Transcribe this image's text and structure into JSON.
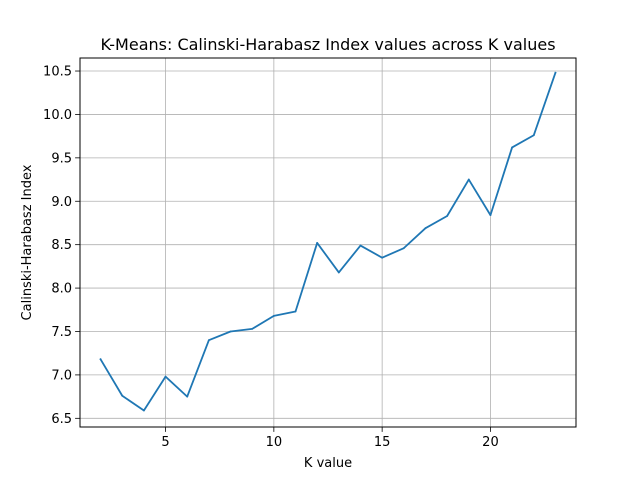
{
  "chart_data": {
    "type": "line",
    "title": "K-Means: Calinski-Harabasz Index values across K values",
    "xlabel": "K value",
    "ylabel": "Calinski-Harabasz Index",
    "xlim": [
      1.05,
      23.95
    ],
    "ylim": [
      6.4,
      10.65
    ],
    "xticks": [
      5,
      10,
      15,
      20
    ],
    "yticks": [
      6.5,
      7.0,
      7.5,
      8.0,
      8.5,
      9.0,
      9.5,
      10.0,
      10.5
    ],
    "xtick_labels": [
      "5",
      "10",
      "15",
      "20"
    ],
    "ytick_labels": [
      "6.5",
      "7.0",
      "7.5",
      "8.0",
      "8.5",
      "9.0",
      "9.5",
      "10.0",
      "10.5"
    ],
    "grid": true,
    "line_color": "#1f77b4",
    "x": [
      2,
      3,
      4,
      5,
      6,
      7,
      8,
      9,
      10,
      11,
      12,
      13,
      14,
      15,
      16,
      17,
      18,
      19,
      20,
      21,
      22,
      23
    ],
    "series": [
      {
        "values": [
          7.18,
          6.76,
          6.59,
          6.98,
          6.75,
          7.4,
          7.5,
          7.53,
          7.68,
          7.73,
          8.52,
          8.18,
          8.49,
          8.35,
          8.46,
          8.69,
          8.83,
          9.25,
          8.84,
          9.62,
          9.76,
          10.48
        ]
      }
    ]
  }
}
